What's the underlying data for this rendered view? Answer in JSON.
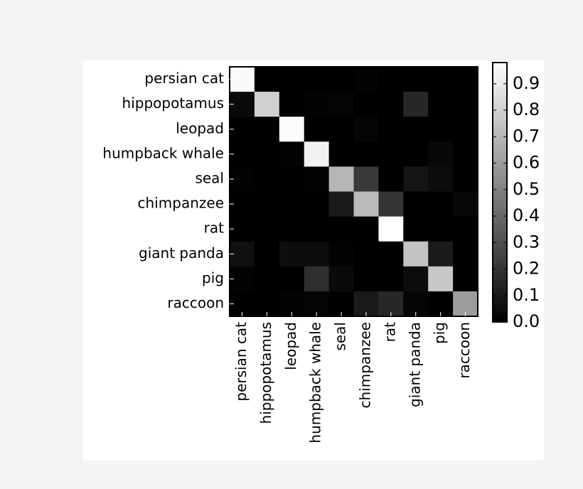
{
  "chart_data": {
    "type": "heatmap",
    "x_categories": [
      "persian cat",
      "hippopotamus",
      "leopad",
      "humpback whale",
      "seal",
      "chimpanzee",
      "rat",
      "giant panda",
      "pig",
      "raccoon"
    ],
    "y_categories": [
      "persian cat",
      "hippopotamus",
      "leopad",
      "humpback whale",
      "seal",
      "chimpanzee",
      "rat",
      "giant panda",
      "pig",
      "raccoon"
    ],
    "values": [
      [
        0.96,
        0,
        0,
        0,
        0,
        0.01,
        0,
        0,
        0,
        0
      ],
      [
        0.04,
        0.8,
        0,
        0.01,
        0.02,
        0,
        0,
        0.15,
        0,
        0
      ],
      [
        0,
        0,
        0.97,
        0,
        0,
        0.02,
        0,
        0,
        0,
        0
      ],
      [
        0,
        0,
        0.01,
        0.93,
        0,
        0,
        0,
        0,
        0.03,
        0
      ],
      [
        0.01,
        0,
        0,
        0.01,
        0.7,
        0.22,
        0,
        0.08,
        0.05,
        0
      ],
      [
        0,
        0,
        0,
        0,
        0.1,
        0.72,
        0.2,
        0,
        0,
        0.03
      ],
      [
        0,
        0,
        0,
        0,
        0,
        0,
        0.98,
        0,
        0,
        0
      ],
      [
        0.06,
        0,
        0.05,
        0.05,
        0.01,
        0,
        0,
        0.75,
        0.1,
        0
      ],
      [
        0.01,
        0,
        0,
        0.18,
        0.04,
        0,
        0,
        0.05,
        0.77,
        0
      ],
      [
        0,
        0,
        0.01,
        0.02,
        0,
        0.1,
        0.15,
        0.02,
        0,
        0.6
      ]
    ],
    "colormap": "gray",
    "zlim": [
      0,
      0.98
    ],
    "zticks": [
      {
        "value": 0,
        "label": "0.0"
      },
      0.1,
      0.2,
      0.3,
      0.4,
      0.5,
      0.6,
      0.7,
      0.8,
      0.9
    ]
  }
}
